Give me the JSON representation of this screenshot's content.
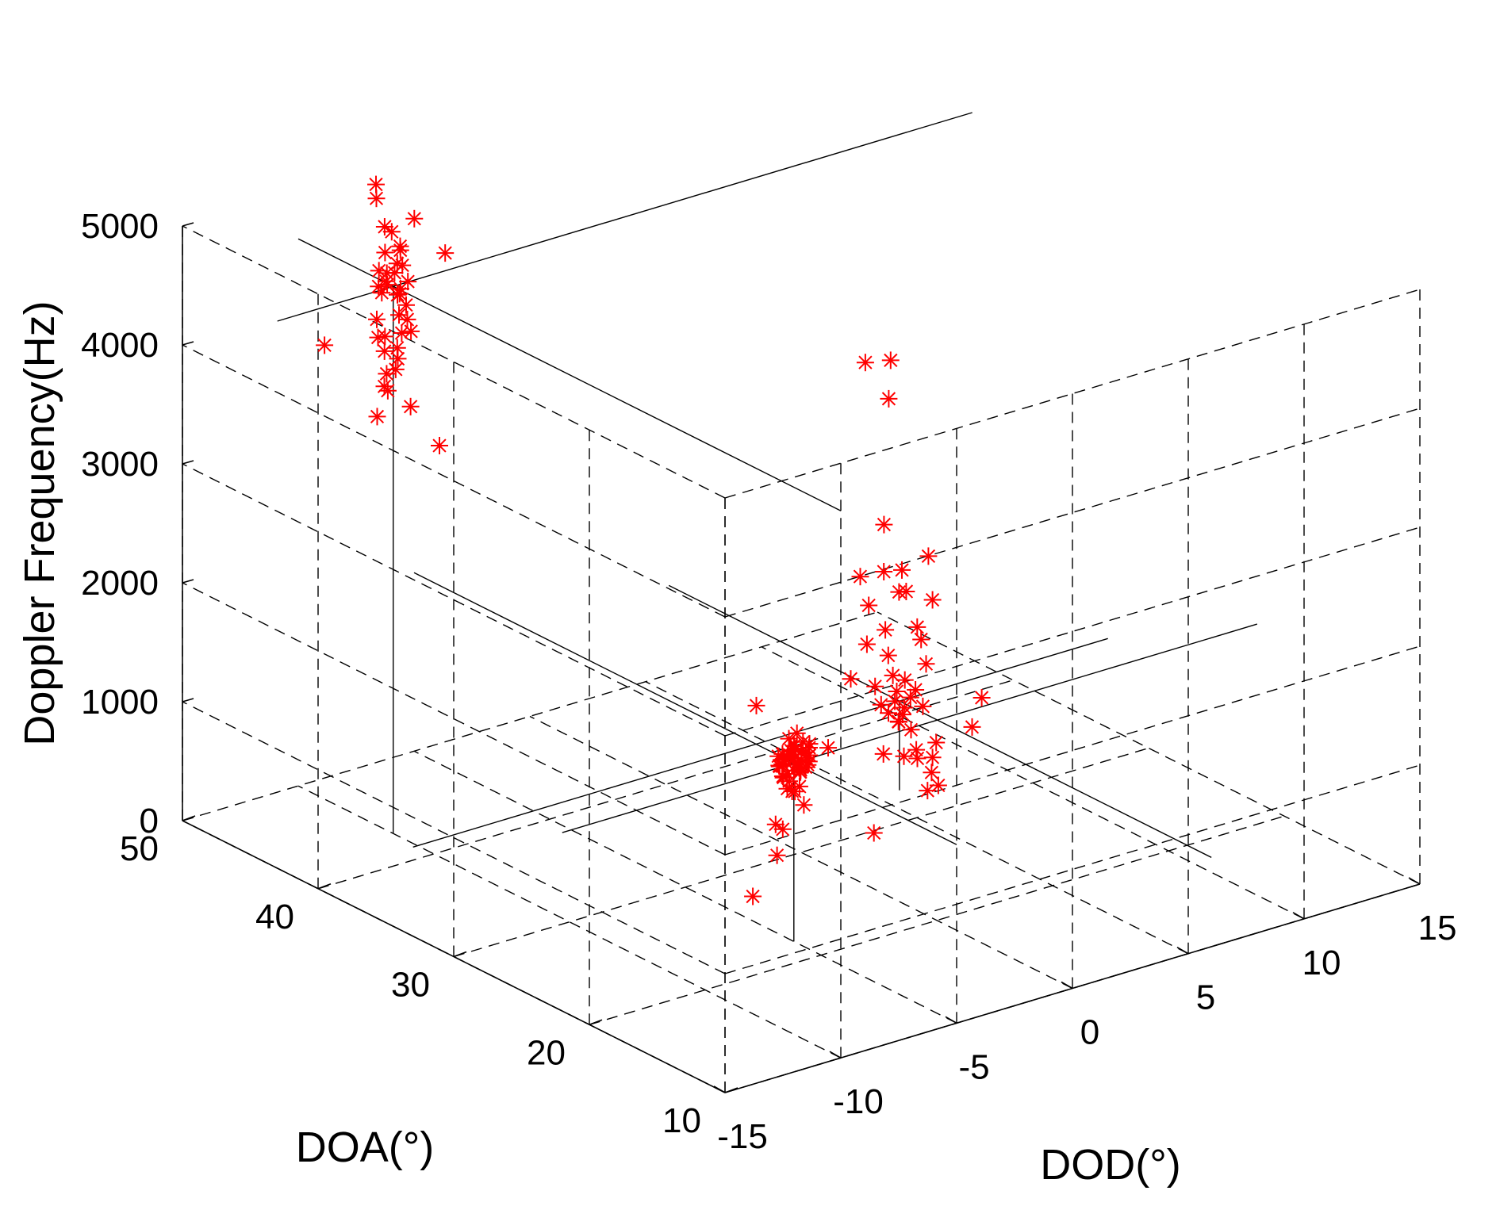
{
  "chart_data": {
    "type": "scatter",
    "projection": "3d",
    "title": "",
    "xlabel": "DOD(°)",
    "ylabel": "DOA(°)",
    "zlabel": "Doppler Frequency(Hz)",
    "xlim": [
      -15,
      15
    ],
    "ylim": [
      10,
      50
    ],
    "zlim": [
      0,
      5000
    ],
    "xticks": [
      -15,
      -10,
      -5,
      0,
      5,
      10,
      15
    ],
    "yticks": [
      10,
      20,
      30,
      40,
      50
    ],
    "zticks": [
      0,
      1000,
      2000,
      3000,
      4000,
      5000
    ],
    "grid": true,
    "grid_style": "dashed",
    "marker": "*",
    "colors": {
      "points": "#ff0000",
      "lines": "#000000",
      "grid": "#000000"
    },
    "true_targets": [
      {
        "x": -5,
        "y": 22,
        "z": 1500
      },
      {
        "x": 6,
        "y": 33,
        "z": 750
      },
      {
        "x": -10,
        "y": 43,
        "z": 4600
      }
    ],
    "series": [
      {
        "name": "",
        "points": [
          [
            -4.8,
            22,
            1490
          ],
          [
            -4.9,
            22.2,
            1520
          ],
          [
            -5.1,
            21.8,
            1455
          ],
          [
            -5.2,
            22.1,
            1560
          ],
          [
            -4.6,
            22.3,
            1420
          ],
          [
            -5.3,
            21.9,
            1600
          ],
          [
            -4.7,
            21.6,
            1550
          ],
          [
            -5,
            22.5,
            1380
          ],
          [
            -4.5,
            21.7,
            1650
          ],
          [
            -5.4,
            22.4,
            1480
          ],
          [
            -4.9,
            21.5,
            1700
          ],
          [
            -5.1,
            22.6,
            1350
          ],
          [
            -4.8,
            22.2,
            1600
          ],
          [
            -5.2,
            21.4,
            1530
          ],
          [
            -4.4,
            22,
            1450
          ],
          [
            -5.5,
            22,
            1520
          ],
          [
            -5,
            21.9,
            1620
          ],
          [
            -4.7,
            22.1,
            1280
          ],
          [
            -5.3,
            22.3,
            1390
          ],
          [
            -4.6,
            21.8,
            1580
          ],
          [
            -5.1,
            22.2,
            1700
          ],
          [
            -4.8,
            21.9,
            1420
          ],
          [
            -5,
            22.4,
            1520
          ],
          [
            -4.9,
            21.7,
            1480
          ],
          [
            -5.2,
            22,
            1360
          ],
          [
            -4.5,
            22.3,
            1550
          ],
          [
            -5.1,
            21.6,
            1780
          ],
          [
            -4.7,
            22.5,
            1600
          ],
          [
            -5.4,
            21.8,
            1320
          ],
          [
            -4.9,
            22.1,
            1250
          ],
          [
            -5,
            21.5,
            1470
          ],
          [
            -4.8,
            22.6,
            1520
          ],
          [
            -5.3,
            21.7,
            1640
          ],
          [
            -4.6,
            22.2,
            1390
          ],
          [
            -5.2,
            22.5,
            1560
          ],
          [
            -4.9,
            21.3,
            1500
          ],
          [
            -5.1,
            22.7,
            1440
          ],
          [
            -4.4,
            21.9,
            1600
          ],
          [
            -5.5,
            22.2,
            1490
          ],
          [
            -4.7,
            21.4,
            1530
          ],
          [
            -5,
            22.8,
            1480
          ],
          [
            -4.8,
            21.2,
            1600
          ],
          [
            -6.2,
            21.1,
            1680
          ],
          [
            -4.9,
            22.3,
            1240
          ],
          [
            -6.3,
            20.6,
            1100
          ],
          [
            -4.1,
            22.8,
            1050
          ],
          [
            -4.5,
            24.2,
            830
          ],
          [
            -5.8,
            23.4,
            1950
          ],
          [
            -5.6,
            24,
            300
          ],
          [
            -3.5,
            25.8,
            420
          ],
          [
            -5,
            16.1,
            1250
          ],
          [
            5.8,
            33,
            760
          ],
          [
            6.1,
            32.8,
            700
          ],
          [
            6,
            33.2,
            820
          ],
          [
            5.7,
            33.3,
            650
          ],
          [
            6.3,
            32.7,
            780
          ],
          [
            6.2,
            33.1,
            620
          ],
          [
            5.5,
            33.5,
            720
          ],
          [
            6.4,
            32.5,
            850
          ],
          [
            5.9,
            32.9,
            590
          ],
          [
            6.6,
            32.3,
            710
          ],
          [
            5.3,
            33.6,
            880
          ],
          [
            6,
            32.6,
            950
          ],
          [
            6.2,
            33.4,
            540
          ],
          [
            5.6,
            32.8,
            1000
          ],
          [
            6.8,
            32.4,
            1050
          ],
          [
            6.5,
            33,
            480
          ],
          [
            5.4,
            32.8,
            1180
          ],
          [
            6.7,
            32.6,
            1250
          ],
          [
            5.8,
            33.7,
            1320
          ],
          [
            6.3,
            32.2,
            1400
          ],
          [
            5.2,
            33.9,
            1550
          ],
          [
            6.9,
            32.1,
            1600
          ],
          [
            6,
            32.5,
            1700
          ],
          [
            5.5,
            33.3,
            1850
          ],
          [
            6.9,
            32.4,
            1950
          ],
          [
            6.1,
            33.2,
            1650
          ],
          [
            6.4,
            33.5,
            1800
          ],
          [
            6.2,
            32.1,
            380
          ],
          [
            5.6,
            33.5,
            300
          ],
          [
            6.6,
            32.7,
            250
          ],
          [
            6.8,
            32,
            160
          ],
          [
            5.9,
            32.5,
            320
          ],
          [
            6.8,
            31.5,
            80
          ],
          [
            4.6,
            34.2,
            950
          ],
          [
            5.3,
            34.2,
            1200
          ],
          [
            4.6,
            33.5,
            1850
          ],
          [
            3.8,
            34.5,
            400
          ],
          [
            5.8,
            33.8,
            2200
          ],
          [
            7,
            32,
            400
          ],
          [
            6.1,
            31.1,
            100
          ],
          [
            6.5,
            34.5,
            3500
          ],
          [
            6.3,
            34.3,
            3200
          ],
          [
            5.7,
            35,
            3500
          ],
          [
            4.5,
            28,
            650
          ],
          [
            6.5,
            28.5,
            760
          ],
          [
            6.8,
            28.3,
            1000
          ],
          [
            -10.2,
            43.1,
            4620
          ],
          [
            -9.8,
            42.8,
            4580
          ],
          [
            -10.1,
            43.3,
            4700
          ],
          [
            -9.9,
            42.7,
            4550
          ],
          [
            -10.3,
            43,
            4660
          ],
          [
            -9.7,
            43.2,
            4500
          ],
          [
            -10,
            42.9,
            4720
          ],
          [
            -10.4,
            43.4,
            4600
          ],
          [
            -9.6,
            42.6,
            4640
          ],
          [
            -10.2,
            43.5,
            4530
          ],
          [
            -9.9,
            42.5,
            4800
          ],
          [
            -10.5,
            43.2,
            4750
          ],
          [
            -9.5,
            42.9,
            4420
          ],
          [
            -10.1,
            42.4,
            4400
          ],
          [
            -10,
            43.6,
            4850
          ],
          [
            -9.8,
            42.3,
            4350
          ],
          [
            -10.3,
            43.7,
            4300
          ],
          [
            -9.7,
            42.2,
            4250
          ],
          [
            -10.6,
            43.1,
            4200
          ],
          [
            -9.4,
            43.4,
            4150
          ],
          [
            -10,
            42.7,
            4100
          ],
          [
            -10.2,
            43.3,
            4050
          ],
          [
            -9.8,
            43,
            3980
          ],
          [
            -10.4,
            42.8,
            3900
          ],
          [
            -9.6,
            43.5,
            3850
          ],
          [
            -10.1,
            42.3,
            4950
          ],
          [
            -9.9,
            43.8,
            5050
          ],
          [
            -10.3,
            42.6,
            5100
          ],
          [
            -9.7,
            43,
            4920
          ],
          [
            -10.5,
            42.8,
            3800
          ],
          [
            -10,
            43.4,
            3700
          ],
          [
            -9.6,
            42.4,
            3600
          ],
          [
            -10.2,
            43.9,
            5300
          ],
          [
            -10.1,
            44.1,
            5400
          ],
          [
            -9.5,
            42.3,
            5180
          ],
          [
            -11,
            41.9,
            4300
          ],
          [
            -9.3,
            43.9,
            4700
          ],
          [
            -11.5,
            45.5,
            4050
          ],
          [
            -8.4,
            41.9,
            4850
          ],
          [
            -9,
            41.3,
            3300
          ],
          [
            -10.4,
            43.5,
            3500
          ]
        ]
      }
    ],
    "annotations": []
  }
}
